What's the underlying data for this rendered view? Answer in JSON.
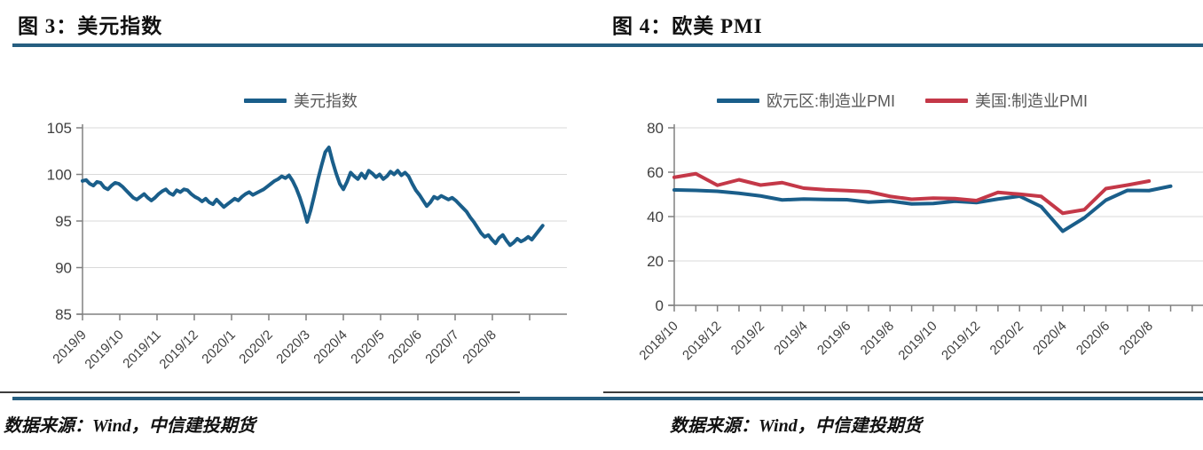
{
  "colors": {
    "accent_blue": "#1A5E8A",
    "accent_red": "#C43848",
    "rule_blue": "#265E80",
    "grid": "#D9D9D9",
    "axis": "#808080",
    "tick_text": "#404040",
    "legend_text": "#595959"
  },
  "figure_left": {
    "title": "图 3：美元指数",
    "legend": [
      {
        "label": "美元指数",
        "color": "#1A5E8A"
      }
    ],
    "source_note": "数据来源：Wind，中信建投期货"
  },
  "figure_right": {
    "title": "图 4：欧美 PMI",
    "legend": [
      {
        "label": "欧元区:制造业PMI",
        "color": "#1A5E8A"
      },
      {
        "label": "美国:制造业PMI",
        "color": "#C43848"
      }
    ],
    "source_note": "数据来源：Wind，中信建投期货"
  },
  "chart_data": [
    {
      "type": "line",
      "title": "美元指数",
      "ylabel": "",
      "xlabel": "",
      "ylim": [
        85,
        105
      ],
      "yticks": [
        85,
        90,
        95,
        100,
        105
      ],
      "grid": true,
      "legend_position": "top",
      "x_tick_labels": [
        "2019/9",
        "2019/10",
        "2019/11",
        "2019/12",
        "2020/1",
        "2020/2",
        "2020/3",
        "2020/4",
        "2020/5",
        "2020/6",
        "2020/7",
        "2020/8"
      ],
      "x_axis_months_span": 13,
      "x_ticks_every_month": 1,
      "x_tick_count": 13,
      "series": [
        {
          "name": "美元指数",
          "color": "#1A5E8A",
          "x_start_month": 0,
          "x_end_month": 12.35,
          "values": [
            99.3,
            99.4,
            99.0,
            98.8,
            99.2,
            99.1,
            98.6,
            98.4,
            98.8,
            99.1,
            99.0,
            98.7,
            98.3,
            97.9,
            97.5,
            97.3,
            97.6,
            97.9,
            97.5,
            97.2,
            97.5,
            97.9,
            98.2,
            98.4,
            98.0,
            97.8,
            98.3,
            98.1,
            98.4,
            98.3,
            97.9,
            97.6,
            97.4,
            97.1,
            97.4,
            97.0,
            96.8,
            97.3,
            96.9,
            96.5,
            96.8,
            97.1,
            97.4,
            97.2,
            97.6,
            97.9,
            98.1,
            97.8,
            98.0,
            98.2,
            98.4,
            98.7,
            99.0,
            99.3,
            99.5,
            99.8,
            99.6,
            99.9,
            99.3,
            98.5,
            97.5,
            96.3,
            94.9,
            96.2,
            97.8,
            99.5,
            101.0,
            102.4,
            102.9,
            101.4,
            100.1,
            99.0,
            98.4,
            99.2,
            100.2,
            99.8,
            99.5,
            100.1,
            99.6,
            100.4,
            100.1,
            99.7,
            100.0,
            99.5,
            99.8,
            100.3,
            100.0,
            100.4,
            99.9,
            100.2,
            99.8,
            99.0,
            98.3,
            97.8,
            97.2,
            96.6,
            97.0,
            97.6,
            97.4,
            97.7,
            97.5,
            97.3,
            97.5,
            97.2,
            96.8,
            96.4,
            96.0,
            95.4,
            94.9,
            94.3,
            93.7,
            93.3,
            93.5,
            93.0,
            92.6,
            93.2,
            93.5,
            92.9,
            92.4,
            92.7,
            93.1,
            92.8,
            93.0,
            93.3,
            93.0,
            93.5,
            94.0,
            94.5
          ]
        }
      ]
    },
    {
      "type": "line",
      "title": "欧美PMI",
      "ylabel": "",
      "xlabel": "",
      "ylim": [
        0,
        80
      ],
      "yticks": [
        0,
        20,
        40,
        60,
        80
      ],
      "grid": true,
      "legend_position": "top",
      "x_tick_labels": [
        "2018/10",
        "2018/12",
        "2019/2",
        "2019/4",
        "2019/6",
        "2019/8",
        "2019/10",
        "2019/12",
        "2020/2",
        "2020/4",
        "2020/6",
        "2020/8"
      ],
      "x_axis_months_span": 24.5,
      "x_ticks_every_month": 1,
      "x_tick_count": 25,
      "x_label_month_step": 2,
      "categories": [
        "2018/10",
        "2018/11",
        "2018/12",
        "2019/1",
        "2019/2",
        "2019/3",
        "2019/4",
        "2019/5",
        "2019/6",
        "2019/7",
        "2019/8",
        "2019/9",
        "2019/10",
        "2019/11",
        "2019/12",
        "2020/1",
        "2020/2",
        "2020/3",
        "2020/4",
        "2020/5",
        "2020/6",
        "2020/7",
        "2020/8",
        "2020/9"
      ],
      "series": [
        {
          "name": "欧元区:制造业PMI",
          "color": "#1A5E8A",
          "x_start_month": 0,
          "x_end_month": 23,
          "values": [
            52.0,
            51.8,
            51.4,
            50.5,
            49.3,
            47.5,
            47.9,
            47.7,
            47.6,
            46.5,
            47.0,
            45.7,
            45.9,
            46.9,
            46.3,
            47.9,
            49.2,
            44.5,
            33.4,
            39.4,
            47.4,
            51.8,
            51.7,
            53.7
          ]
        },
        {
          "name": "美国:制造业PMI",
          "color": "#C43848",
          "x_start_month": 0,
          "x_end_month": 22,
          "values": [
            57.7,
            59.3,
            54.1,
            56.6,
            54.2,
            55.3,
            52.8,
            52.1,
            51.7,
            51.2,
            49.1,
            47.8,
            48.3,
            48.1,
            47.2,
            50.9,
            50.1,
            49.1,
            41.5,
            43.1,
            52.6,
            54.2,
            56.0
          ]
        }
      ]
    }
  ]
}
